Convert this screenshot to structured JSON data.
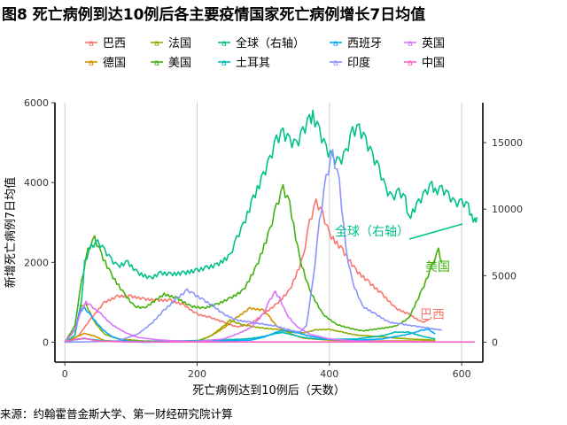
{
  "title": "图8 死亡病例到达10例后各主要疫情国家死亡病例增长7日均值",
  "source": "来源：约翰霍普金斯大学、第一财经研究院计算",
  "chart_data": {
    "type": "line",
    "xlabel": "死亡病例达到10例后（天数）",
    "ylabel": "新增死亡病例7日均值",
    "xlim": [
      -15,
      632
    ],
    "ylim_left": [
      -500,
      6000
    ],
    "ylim_right": [
      -1500,
      18000
    ],
    "x_ticks": [
      0,
      200,
      400,
      600
    ],
    "y_ticks_left": [
      0,
      2000,
      4000,
      6000
    ],
    "y_ticks_right": [
      0,
      5000,
      10000,
      15000
    ],
    "grid_x": true,
    "legend_position": "top",
    "series": [
      {
        "name": "巴西",
        "color": "#F8766D",
        "axis": "left",
        "points": [
          [
            0,
            0
          ],
          [
            20,
            150
          ],
          [
            40,
            600
          ],
          [
            60,
            1000
          ],
          [
            80,
            1150
          ],
          [
            100,
            1150
          ],
          [
            120,
            1080
          ],
          [
            140,
            1050
          ],
          [
            160,
            1050
          ],
          [
            180,
            930
          ],
          [
            200,
            700
          ],
          [
            220,
            620
          ],
          [
            240,
            500
          ],
          [
            260,
            380
          ],
          [
            280,
            450
          ],
          [
            300,
            700
          ],
          [
            320,
            950
          ],
          [
            340,
            1300
          ],
          [
            360,
            2100
          ],
          [
            370,
            3000
          ],
          [
            380,
            3500
          ],
          [
            390,
            3200
          ],
          [
            400,
            2700
          ],
          [
            420,
            2300
          ],
          [
            440,
            1800
          ],
          [
            460,
            1500
          ],
          [
            480,
            1200
          ],
          [
            500,
            850
          ],
          [
            520,
            700
          ],
          [
            540,
            500
          ],
          [
            550,
            550
          ]
        ],
        "label": "巴西"
      },
      {
        "name": "德国",
        "color": "#D39200",
        "axis": "left",
        "points": [
          [
            0,
            0
          ],
          [
            20,
            150
          ],
          [
            30,
            220
          ],
          [
            45,
            150
          ],
          [
            60,
            40
          ],
          [
            100,
            10
          ],
          [
            150,
            5
          ],
          [
            200,
            20
          ],
          [
            220,
            150
          ],
          [
            240,
            350
          ],
          [
            260,
            620
          ],
          [
            280,
            850
          ],
          [
            300,
            800
          ],
          [
            310,
            620
          ],
          [
            320,
            400
          ],
          [
            340,
            220
          ],
          [
            360,
            100
          ],
          [
            400,
            50
          ],
          [
            440,
            30
          ],
          [
            480,
            30
          ],
          [
            520,
            30
          ],
          [
            560,
            20
          ]
        ]
      },
      {
        "name": "法国",
        "color": "#93AA00",
        "axis": "left",
        "points": [
          [
            0,
            0
          ],
          [
            15,
            300
          ],
          [
            25,
            900
          ],
          [
            32,
            950
          ],
          [
            45,
            500
          ],
          [
            60,
            200
          ],
          [
            80,
            80
          ],
          [
            120,
            30
          ],
          [
            160,
            20
          ],
          [
            200,
            30
          ],
          [
            220,
            150
          ],
          [
            240,
            400
          ],
          [
            250,
            550
          ],
          [
            265,
            450
          ],
          [
            280,
            400
          ],
          [
            300,
            350
          ],
          [
            320,
            320
          ],
          [
            340,
            250
          ],
          [
            360,
            230
          ],
          [
            380,
            310
          ],
          [
            400,
            320
          ],
          [
            420,
            250
          ],
          [
            440,
            180
          ],
          [
            480,
            130
          ],
          [
            520,
            80
          ],
          [
            560,
            50
          ]
        ]
      },
      {
        "name": "美国",
        "color": "#43B10E",
        "axis": "left",
        "points": [
          [
            0,
            0
          ],
          [
            15,
            400
          ],
          [
            25,
            1500
          ],
          [
            35,
            2300
          ],
          [
            45,
            2600
          ],
          [
            55,
            2200
          ],
          [
            70,
            1700
          ],
          [
            90,
            1200
          ],
          [
            105,
            900
          ],
          [
            120,
            850
          ],
          [
            150,
            1200
          ],
          [
            170,
            1100
          ],
          [
            190,
            900
          ],
          [
            210,
            850
          ],
          [
            230,
            950
          ],
          [
            250,
            1100
          ],
          [
            270,
            1300
          ],
          [
            290,
            1900
          ],
          [
            310,
            2800
          ],
          [
            320,
            3400
          ],
          [
            330,
            3850
          ],
          [
            340,
            3450
          ],
          [
            355,
            2100
          ],
          [
            370,
            1300
          ],
          [
            390,
            700
          ],
          [
            410,
            450
          ],
          [
            430,
            350
          ],
          [
            450,
            280
          ],
          [
            480,
            350
          ],
          [
            500,
            400
          ],
          [
            520,
            600
          ],
          [
            540,
            1300
          ],
          [
            555,
            1900
          ],
          [
            565,
            2300
          ],
          [
            570,
            2000
          ]
        ],
        "label": "美国"
      },
      {
        "name": "全球（右轴）",
        "color": "#00C08B",
        "axis": "right",
        "points": [
          [
            0,
            0
          ],
          [
            15,
            500
          ],
          [
            25,
            3000
          ],
          [
            30,
            6000
          ],
          [
            40,
            7200
          ],
          [
            50,
            7500
          ],
          [
            60,
            6900
          ],
          [
            70,
            6200
          ],
          [
            80,
            5700
          ],
          [
            95,
            6000
          ],
          [
            110,
            5200
          ],
          [
            130,
            4800
          ],
          [
            145,
            5200
          ],
          [
            160,
            5100
          ],
          [
            180,
            5200
          ],
          [
            200,
            5400
          ],
          [
            215,
            5600
          ],
          [
            230,
            5800
          ],
          [
            250,
            6500
          ],
          [
            260,
            7800
          ],
          [
            270,
            8800
          ],
          [
            285,
            10800
          ],
          [
            300,
            12500
          ],
          [
            310,
            13700
          ],
          [
            320,
            15200
          ],
          [
            330,
            15700
          ],
          [
            340,
            15100
          ],
          [
            350,
            14800
          ],
          [
            360,
            15800
          ],
          [
            370,
            16700
          ],
          [
            375,
            17000
          ],
          [
            385,
            15800
          ],
          [
            395,
            14500
          ],
          [
            405,
            13800
          ],
          [
            415,
            13500
          ],
          [
            425,
            14200
          ],
          [
            435,
            15800
          ],
          [
            445,
            16000
          ],
          [
            455,
            15100
          ],
          [
            465,
            14000
          ],
          [
            475,
            13000
          ],
          [
            485,
            11500
          ],
          [
            495,
            10800
          ],
          [
            505,
            11300
          ],
          [
            515,
            10700
          ],
          [
            520,
            9300
          ],
          [
            535,
            10500
          ],
          [
            545,
            11200
          ],
          [
            555,
            11800
          ],
          [
            560,
            11300
          ],
          [
            570,
            11500
          ],
          [
            580,
            11000
          ],
          [
            590,
            10400
          ],
          [
            600,
            10500
          ],
          [
            610,
            10200
          ],
          [
            615,
            9400
          ],
          [
            620,
            9100
          ],
          [
            623,
            9400
          ]
        ],
        "label": "全球（右轴）"
      },
      {
        "name": "土耳其",
        "color": "#00BBB2",
        "axis": "left",
        "points": [
          [
            0,
            0
          ],
          [
            15,
            60
          ],
          [
            30,
            90
          ],
          [
            45,
            60
          ],
          [
            60,
            30
          ],
          [
            90,
            25
          ],
          [
            120,
            20
          ],
          [
            150,
            25
          ],
          [
            180,
            35
          ],
          [
            200,
            40
          ],
          [
            220,
            50
          ],
          [
            240,
            60
          ],
          [
            260,
            70
          ],
          [
            280,
            90
          ],
          [
            300,
            140
          ],
          [
            320,
            220
          ],
          [
            330,
            240
          ],
          [
            340,
            200
          ],
          [
            360,
            120
          ],
          [
            380,
            80
          ],
          [
            400,
            70
          ],
          [
            420,
            75
          ],
          [
            440,
            80
          ],
          [
            460,
            120
          ],
          [
            480,
            160
          ],
          [
            500,
            250
          ],
          [
            520,
            250
          ],
          [
            540,
            150
          ],
          [
            560,
            80
          ]
        ]
      },
      {
        "name": "西班牙",
        "color": "#00A9FF",
        "axis": "left",
        "points": [
          [
            0,
            0
          ],
          [
            15,
            300
          ],
          [
            22,
            750
          ],
          [
            30,
            850
          ],
          [
            40,
            650
          ],
          [
            55,
            350
          ],
          [
            70,
            150
          ],
          [
            85,
            60
          ],
          [
            100,
            10
          ],
          [
            120,
            0
          ],
          [
            140,
            5
          ],
          [
            160,
            10
          ],
          [
            200,
            20
          ],
          [
            240,
            30
          ],
          [
            280,
            50
          ],
          [
            300,
            120
          ],
          [
            320,
            250
          ],
          [
            330,
            290
          ],
          [
            340,
            280
          ],
          [
            355,
            220
          ],
          [
            370,
            150
          ],
          [
            390,
            100
          ],
          [
            410,
            60
          ],
          [
            440,
            50
          ],
          [
            480,
            80
          ],
          [
            520,
            200
          ],
          [
            540,
            300
          ],
          [
            550,
            320
          ],
          [
            560,
            200
          ]
        ]
      },
      {
        "name": "印度",
        "color": "#8B93FF",
        "axis": "left",
        "points": [
          [
            0,
            0
          ],
          [
            40,
            10
          ],
          [
            80,
            30
          ],
          [
            110,
            200
          ],
          [
            130,
            450
          ],
          [
            150,
            800
          ],
          [
            170,
            1100
          ],
          [
            185,
            1300
          ],
          [
            195,
            1200
          ],
          [
            210,
            1050
          ],
          [
            225,
            900
          ],
          [
            240,
            700
          ],
          [
            260,
            550
          ],
          [
            280,
            500
          ],
          [
            300,
            450
          ],
          [
            320,
            400
          ],
          [
            340,
            300
          ],
          [
            355,
            250
          ],
          [
            365,
            400
          ],
          [
            375,
            1500
          ],
          [
            385,
            3000
          ],
          [
            395,
            4100
          ],
          [
            405,
            4700
          ],
          [
            415,
            4000
          ],
          [
            425,
            2300
          ],
          [
            435,
            1500
          ],
          [
            450,
            900
          ],
          [
            470,
            700
          ],
          [
            490,
            500
          ],
          [
            510,
            450
          ],
          [
            530,
            400
          ],
          [
            550,
            350
          ],
          [
            570,
            300
          ]
        ]
      },
      {
        "name": "英国",
        "color": "#DB72FB",
        "axis": "left",
        "points": [
          [
            0,
            0
          ],
          [
            15,
            300
          ],
          [
            25,
            800
          ],
          [
            32,
            1000
          ],
          [
            40,
            900
          ],
          [
            55,
            700
          ],
          [
            70,
            450
          ],
          [
            90,
            250
          ],
          [
            110,
            120
          ],
          [
            140,
            60
          ],
          [
            170,
            30
          ],
          [
            200,
            20
          ],
          [
            240,
            80
          ],
          [
            260,
            200
          ],
          [
            280,
            350
          ],
          [
            300,
            700
          ],
          [
            310,
            1050
          ],
          [
            318,
            1250
          ],
          [
            325,
            1100
          ],
          [
            335,
            700
          ],
          [
            350,
            400
          ],
          [
            370,
            200
          ],
          [
            400,
            80
          ],
          [
            440,
            30
          ],
          [
            480,
            20
          ],
          [
            520,
            15
          ],
          [
            560,
            10
          ]
        ]
      },
      {
        "name": "中国",
        "color": "#FF61C3",
        "axis": "left",
        "points": [
          [
            0,
            20
          ],
          [
            10,
            50
          ],
          [
            20,
            80
          ],
          [
            30,
            100
          ],
          [
            40,
            60
          ],
          [
            50,
            30
          ],
          [
            80,
            10
          ],
          [
            150,
            5
          ],
          [
            300,
            5
          ],
          [
            450,
            5
          ],
          [
            620,
            5
          ]
        ]
      }
    ]
  }
}
